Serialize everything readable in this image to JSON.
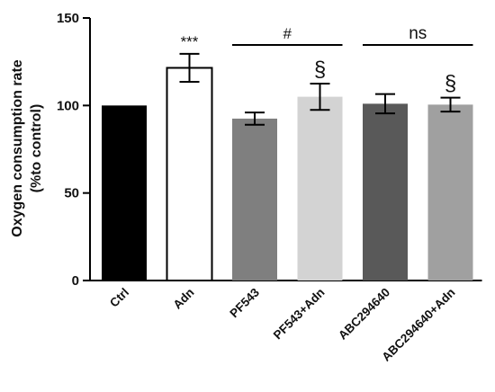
{
  "chart_data": {
    "type": "bar",
    "ylabel_line1": "Oxygen consumption rate",
    "ylabel_line2": "(%to control)",
    "ylim": [
      0,
      150
    ],
    "yticks": [
      0,
      50,
      100,
      150
    ],
    "categories": [
      "Ctrl",
      "Adn",
      "PF543",
      "PF543+Adn",
      "ABC294640",
      "ABC294640+Adn"
    ],
    "values": [
      100,
      121.5,
      92.5,
      105,
      101,
      100.5
    ],
    "errors": [
      0,
      8,
      3.5,
      7.5,
      5.5,
      4
    ],
    "colors": [
      "#000000",
      "#ffffff",
      "#7f7f7f",
      "#d3d3d3",
      "#595959",
      "#a0a0a0"
    ],
    "bar_annotations": [
      "",
      "***",
      "",
      "§",
      "",
      "§"
    ],
    "comparisons": [
      {
        "from": 2,
        "to": 3,
        "label": "#"
      },
      {
        "from": 4,
        "to": 5,
        "label": "ns"
      }
    ],
    "grid": false,
    "legend": "none"
  }
}
